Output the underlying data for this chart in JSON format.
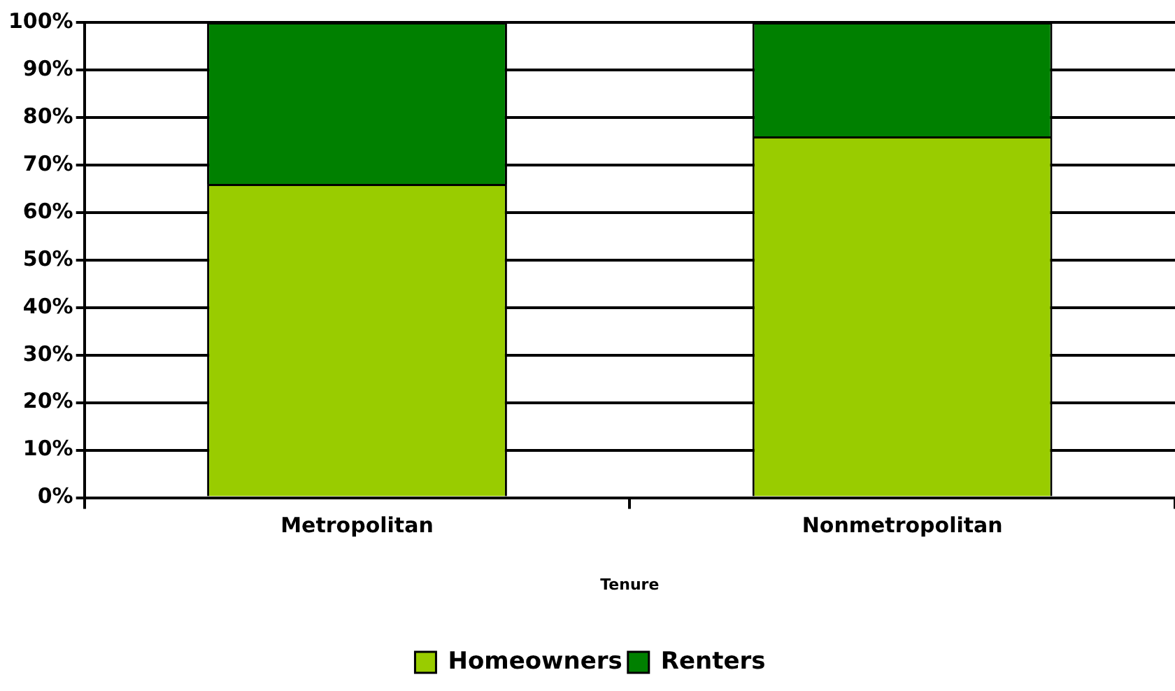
{
  "chart_data": {
    "type": "bar",
    "stacked": true,
    "xlabel": "Tenure",
    "categories": [
      "Metropolitan",
      "Nonmetropolitan"
    ],
    "series": [
      {
        "name": "Homeowners",
        "color": "#99cc00",
        "values": [
          66,
          76
        ]
      },
      {
        "name": "Renters",
        "color": "#008000",
        "values": [
          34,
          24
        ]
      }
    ],
    "ylim": [
      0,
      100
    ],
    "yticks": [
      {
        "value": 0,
        "label": "0%"
      },
      {
        "value": 10,
        "label": "10%"
      },
      {
        "value": 20,
        "label": "20%"
      },
      {
        "value": 30,
        "label": "30%"
      },
      {
        "value": 40,
        "label": "40%"
      },
      {
        "value": 50,
        "label": "50%"
      },
      {
        "value": 60,
        "label": "60%"
      },
      {
        "value": 70,
        "label": "70%"
      },
      {
        "value": 80,
        "label": "80%"
      },
      {
        "value": 90,
        "label": "90%"
      },
      {
        "value": 100,
        "label": "100%"
      }
    ],
    "grid": "y",
    "legend": "bottom"
  }
}
